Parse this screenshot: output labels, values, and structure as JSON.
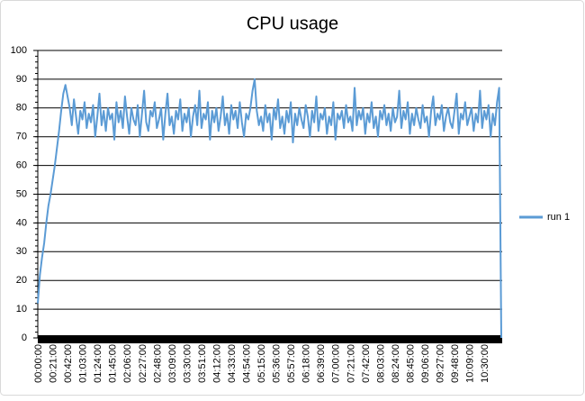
{
  "chart_data": {
    "type": "line",
    "title": "CPU usage",
    "categories": [
      "00:00:00",
      null,
      null,
      null,
      null,
      null,
      null,
      "00:21:00",
      null,
      null,
      null,
      null,
      null,
      null,
      "00:42:00",
      null,
      null,
      null,
      null,
      null,
      null,
      "01:03:00",
      null,
      null,
      null,
      null,
      null,
      null,
      "01:24:00",
      null,
      null,
      null,
      null,
      null,
      null,
      "01:45:00",
      null,
      null,
      null,
      null,
      null,
      null,
      "02:06:00",
      null,
      null,
      null,
      null,
      null,
      null,
      "02:27:00",
      null,
      null,
      null,
      null,
      null,
      null,
      "02:48:00",
      null,
      null,
      null,
      null,
      null,
      null,
      "03:09:00",
      null,
      null,
      null,
      null,
      null,
      null,
      "03:30:00",
      null,
      null,
      null,
      null,
      null,
      null,
      "03:51:00",
      null,
      null,
      null,
      null,
      null,
      null,
      "04:12:00",
      null,
      null,
      null,
      null,
      null,
      null,
      "04:33:00",
      null,
      null,
      null,
      null,
      null,
      null,
      "04:54:00",
      null,
      null,
      null,
      null,
      null,
      null,
      "05:15:00",
      null,
      null,
      null,
      null,
      null,
      null,
      "05:36:00",
      null,
      null,
      null,
      null,
      null,
      null,
      "05:57:00",
      null,
      null,
      null,
      null,
      null,
      null,
      "06:18:00",
      null,
      null,
      null,
      null,
      null,
      null,
      "06:39:00",
      null,
      null,
      null,
      null,
      null,
      null,
      "07:00:00",
      null,
      null,
      null,
      null,
      null,
      null,
      "07:21:00",
      null,
      null,
      null,
      null,
      null,
      null,
      "07:42:00",
      null,
      null,
      null,
      null,
      null,
      null,
      "08:03:00",
      null,
      null,
      null,
      null,
      null,
      null,
      "08:24:00",
      null,
      null,
      null,
      null,
      null,
      null,
      "08:45:00",
      null,
      null,
      null,
      null,
      null,
      null,
      "09:06:00",
      null,
      null,
      null,
      null,
      null,
      null,
      "09:27:00",
      null,
      null,
      null,
      null,
      null,
      null,
      "09:48:00",
      null,
      null,
      null,
      null,
      null,
      null,
      "10:09:00",
      null,
      null,
      null,
      null,
      null,
      null,
      "10:30:00",
      null,
      null,
      null,
      null,
      null,
      null,
      null,
      null
    ],
    "series": [
      {
        "name": "run 1",
        "color": "#5b9bd5",
        "values": [
          12,
          22,
          28,
          33,
          40,
          46,
          50,
          55,
          60,
          66,
          72,
          79,
          85,
          88,
          84,
          80,
          74,
          83,
          77,
          71,
          79,
          76,
          82,
          73,
          78,
          75,
          81,
          70,
          77,
          85,
          74,
          79,
          72,
          80,
          76,
          78,
          69,
          82,
          75,
          79,
          73,
          84,
          77,
          71,
          80,
          76,
          74,
          81,
          70,
          78,
          86,
          75,
          72,
          79,
          77,
          82,
          73,
          76,
          80,
          69,
          78,
          85,
          74,
          77,
          71,
          79,
          76,
          83,
          72,
          78,
          75,
          80,
          70,
          77,
          81,
          74,
          86,
          73,
          78,
          76,
          82,
          69,
          79,
          75,
          80,
          72,
          77,
          84,
          74,
          78,
          71,
          81,
          76,
          79,
          73,
          82,
          75,
          70,
          78,
          76,
          80,
          86,
          90,
          79,
          74,
          77,
          72,
          81,
          75,
          78,
          69,
          80,
          76,
          83,
          73,
          77,
          71,
          79,
          75,
          82,
          68,
          78,
          74,
          80,
          76,
          73,
          81,
          77,
          70,
          79,
          75,
          84,
          72,
          78,
          76,
          80,
          71,
          77,
          74,
          82,
          69,
          78,
          76,
          79,
          73,
          81,
          75,
          77,
          72,
          87,
          74,
          79,
          76,
          80,
          71,
          78,
          75,
          82,
          73,
          77,
          70,
          79,
          76,
          81,
          74,
          78,
          72,
          80,
          75,
          77,
          86,
          73,
          79,
          76,
          82,
          71,
          78,
          74,
          80,
          76,
          73,
          81,
          75,
          77,
          70,
          79,
          84,
          74,
          78,
          76,
          81,
          72,
          77,
          80,
          75,
          73,
          79,
          85,
          71,
          78,
          76,
          82,
          74,
          77,
          80,
          72,
          78,
          75,
          86,
          73,
          79,
          76,
          81,
          70,
          78,
          74,
          82,
          87,
          0
        ]
      }
    ],
    "ylim": [
      0,
      100
    ],
    "yticks": [
      0,
      10,
      20,
      30,
      40,
      50,
      60,
      70,
      80,
      90,
      100
    ],
    "grid": true,
    "legend": "right"
  }
}
